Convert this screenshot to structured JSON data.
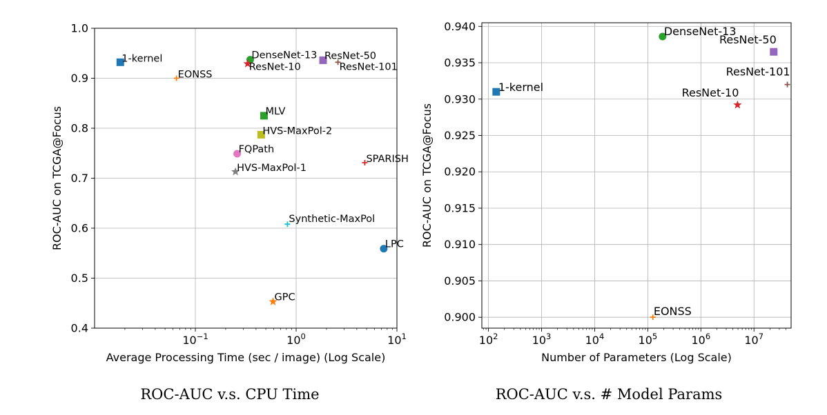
{
  "chart_data": [
    {
      "type": "scatter",
      "xscale": "log",
      "xlim": [
        0.01,
        10
      ],
      "ylim": [
        0.4,
        1.0
      ],
      "xlabel": "Average Processing Time (sec / image) (Log Scale)",
      "ylabel": "ROC-AUC on TCGA@Focus",
      "yticks": [
        "0.4",
        "0.5",
        "0.6",
        "0.7",
        "0.8",
        "0.9",
        "1.0"
      ],
      "xticks": [
        {
          "base": "10",
          "exp": "−1",
          "value": 0.1
        },
        {
          "base": "10",
          "exp": "0",
          "value": 1
        },
        {
          "base": "10",
          "exp": "1",
          "value": 10
        }
      ],
      "grid": true,
      "caption": "ROC-AUC v.s. CPU Time",
      "points": [
        {
          "label": "1-kernel",
          "x": 0.018,
          "y": 0.932,
          "marker": "square",
          "color": "#1f77b4"
        },
        {
          "label": "EONSS",
          "x": 0.065,
          "y": 0.9,
          "marker": "plus",
          "color": "#ff7f0e"
        },
        {
          "label": "DenseNet-13",
          "x": 0.35,
          "y": 0.937,
          "marker": "circle",
          "color": "#2ca02c"
        },
        {
          "label": "ResNet-10",
          "x": 0.33,
          "y": 0.929,
          "marker": "star",
          "color": "#d62728"
        },
        {
          "label": "ResNet-50",
          "x": 1.85,
          "y": 0.936,
          "marker": "square",
          "color": "#9467bd"
        },
        {
          "label": "ResNet-101",
          "x": 2.6,
          "y": 0.932,
          "marker": "plus",
          "color": "#8c564b"
        },
        {
          "label": "MLV",
          "x": 0.48,
          "y": 0.825,
          "marker": "square",
          "color": "#2ca02c"
        },
        {
          "label": "HVS-MaxPol-2",
          "x": 0.45,
          "y": 0.787,
          "marker": "square",
          "color": "#bcbd22"
        },
        {
          "label": "FQPath",
          "x": 0.26,
          "y": 0.749,
          "marker": "circle",
          "color": "#e377c2"
        },
        {
          "label": "HVS-MaxPol-1",
          "x": 0.25,
          "y": 0.713,
          "marker": "star",
          "color": "#7f7f7f"
        },
        {
          "label": "SPARISH",
          "x": 4.8,
          "y": 0.731,
          "marker": "plus",
          "color": "#d62728"
        },
        {
          "label": "Synthetic-MaxPol",
          "x": 0.82,
          "y": 0.608,
          "marker": "plus",
          "color": "#17becf"
        },
        {
          "label": "LPC",
          "x": 7.4,
          "y": 0.559,
          "marker": "circle",
          "color": "#1f77b4"
        },
        {
          "label": "GPC",
          "x": 0.59,
          "y": 0.453,
          "marker": "star",
          "color": "#ff7f0e"
        }
      ]
    },
    {
      "type": "scatter",
      "xscale": "log",
      "xlim": [
        75,
        50000000
      ],
      "ylim": [
        0.8985,
        0.9405
      ],
      "xlabel": "Number of Parameters (Log Scale)",
      "ylabel": "ROC-AUC on TCGA@Focus",
      "yticks": [
        "0.900",
        "0.905",
        "0.910",
        "0.915",
        "0.920",
        "0.925",
        "0.930",
        "0.935",
        "0.940"
      ],
      "xticks": [
        {
          "base": "10",
          "exp": "2",
          "value": 100
        },
        {
          "base": "10",
          "exp": "3",
          "value": 1000
        },
        {
          "base": "10",
          "exp": "4",
          "value": 10000
        },
        {
          "base": "10",
          "exp": "5",
          "value": 100000
        },
        {
          "base": "10",
          "exp": "6",
          "value": 1000000
        },
        {
          "base": "10",
          "exp": "7",
          "value": 10000000
        }
      ],
      "grid": true,
      "caption": "ROC-AUC v.s. # Model Params",
      "points": [
        {
          "label": "1-kernel",
          "x": 140,
          "y": 0.931,
          "marker": "square",
          "color": "#1f77b4"
        },
        {
          "label": "EONSS",
          "x": 125000,
          "y": 0.9,
          "marker": "plus",
          "color": "#ff7f0e"
        },
        {
          "label": "DenseNet-13",
          "x": 190000,
          "y": 0.9386,
          "marker": "circle",
          "color": "#2ca02c"
        },
        {
          "label": "ResNet-10",
          "x": 4900000,
          "y": 0.9292,
          "marker": "star",
          "color": "#d62728"
        },
        {
          "label": "ResNet-50",
          "x": 23500000,
          "y": 0.9365,
          "marker": "square",
          "color": "#9467bd"
        },
        {
          "label": "ResNet-101",
          "x": 42500000,
          "y": 0.932,
          "marker": "plus",
          "color": "#8c564b"
        }
      ]
    }
  ]
}
